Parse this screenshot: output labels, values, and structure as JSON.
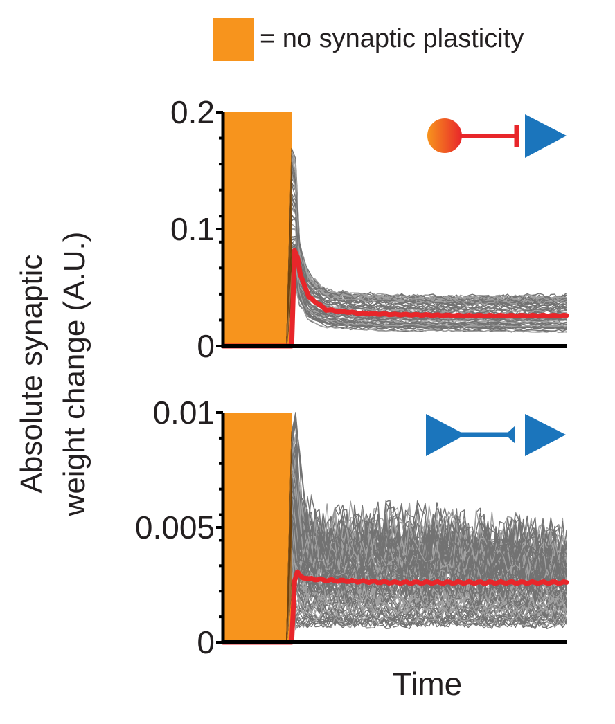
{
  "legend": {
    "swatch_color": "#f7941d",
    "label": "= no synaptic plasticity"
  },
  "ylabel_line1": "Absolute synaptic",
  "ylabel_line2": "weight change (A.U.)",
  "xlabel": "Time",
  "colors": {
    "plasticity_off": "#f7941d",
    "individual": "#000000",
    "mean": "#e8262a",
    "excitatory": "#1b75bc",
    "inhibitory_start": "#f7941d",
    "inhibitory_end": "#e8262a",
    "axis": "#000000"
  },
  "chart_data": [
    {
      "type": "line",
      "panel": "top",
      "icon": "inhibitory-to-excitatory-synapse",
      "ylim": [
        0,
        0.2
      ],
      "yticks": [
        "0",
        "0.1",
        "0.2"
      ],
      "ytick_values": [
        0,
        0.1,
        0.2
      ],
      "plasticity_off_interval": [
        0,
        0.2
      ],
      "x": [
        0,
        0.2,
        0.21,
        0.22,
        0.25,
        0.3,
        0.4,
        0.5,
        0.7,
        1.0
      ],
      "mean_series": {
        "values": [
          0,
          0,
          0.098,
          0.065,
          0.042,
          0.031,
          0.028,
          0.027,
          0.026,
          0.026
        ]
      },
      "spread": {
        "upper": [
          0,
          0,
          0.17,
          0.09,
          0.06,
          0.048,
          0.044,
          0.043,
          0.042,
          0.043
        ],
        "lower": [
          0,
          0,
          0.05,
          0.038,
          0.022,
          0.016,
          0.014,
          0.013,
          0.013,
          0.012
        ]
      }
    },
    {
      "type": "line",
      "panel": "bottom",
      "icon": "excitatory-to-excitatory-synapse",
      "ylim": [
        0,
        0.01
      ],
      "yticks": [
        "0",
        "0.005",
        "0.01"
      ],
      "ytick_values": [
        0,
        0.005,
        0.01
      ],
      "plasticity_off_interval": [
        0,
        0.2
      ],
      "x": [
        0,
        0.2,
        0.21,
        0.23,
        0.3,
        0.5,
        0.7,
        1.0
      ],
      "mean_series": {
        "values": [
          0,
          0,
          0.0032,
          0.0028,
          0.0027,
          0.0026,
          0.0026,
          0.0026
        ]
      },
      "spread": {
        "upper": [
          0,
          0,
          0.0092,
          0.0055,
          0.0048,
          0.005,
          0.0047,
          0.0043
        ],
        "lower": [
          0,
          0,
          0.0006,
          0.0008,
          0.0008,
          0.0008,
          0.0008,
          0.0008
        ]
      }
    }
  ]
}
